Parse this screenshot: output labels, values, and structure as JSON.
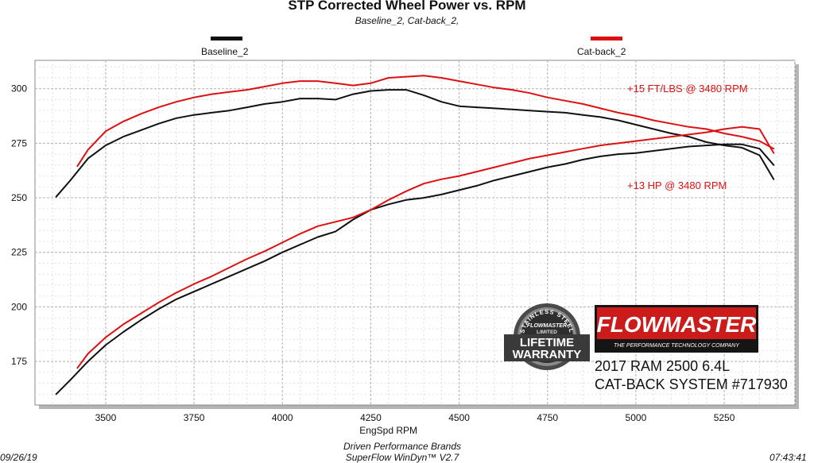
{
  "chart_data": {
    "type": "line",
    "title": "STP Corrected Wheel Power vs. RPM",
    "subtitle": "Baseline_2, Cat-back_2,",
    "xlabel": "EngSpd  RPM",
    "ylabel": "",
    "xlim": [
      3300,
      5450
    ],
    "ylim": [
      155,
      313
    ],
    "x_ticks": [
      3500,
      3750,
      4000,
      4250,
      4500,
      4750,
      5000,
      5250
    ],
    "y_ticks": [
      175,
      200,
      225,
      250,
      275,
      300
    ],
    "grid": true,
    "legend": [
      {
        "name": "Baseline_2",
        "color": "#111111"
      },
      {
        "name": "Cat-back_2",
        "color": "#dd1111"
      }
    ],
    "series": [
      {
        "name": "Baseline_2",
        "curve": "torque",
        "color": "#111111",
        "x": [
          3360,
          3400,
          3450,
          3500,
          3550,
          3600,
          3650,
          3700,
          3750,
          3800,
          3850,
          3900,
          3950,
          4000,
          4050,
          4100,
          4150,
          4200,
          4250,
          4300,
          4350,
          4400,
          4450,
          4500,
          4550,
          4600,
          4650,
          4700,
          4750,
          4800,
          4850,
          4900,
          4950,
          5000,
          5050,
          5100,
          5150,
          5200,
          5250,
          5300,
          5350,
          5390
        ],
        "y": [
          250.5,
          258,
          268,
          274,
          278,
          281,
          284,
          286.5,
          288,
          289,
          290,
          291.5,
          293,
          294,
          295.5,
          295.5,
          295,
          297.5,
          299,
          299.5,
          299.5,
          297,
          294,
          292,
          291.5,
          291,
          290.5,
          290,
          289.5,
          289,
          288,
          287,
          285.5,
          283.5,
          281.5,
          279.5,
          278,
          275.5,
          274,
          273,
          269.5,
          258.5
        ]
      },
      {
        "name": "Cat-back_2",
        "curve": "torque",
        "color": "#dd1111",
        "x": [
          3420,
          3450,
          3500,
          3550,
          3600,
          3650,
          3700,
          3750,
          3800,
          3850,
          3900,
          3950,
          4000,
          4050,
          4100,
          4150,
          4200,
          4250,
          4300,
          4350,
          4400,
          4450,
          4500,
          4550,
          4600,
          4650,
          4700,
          4750,
          4800,
          4850,
          4900,
          4950,
          5000,
          5050,
          5100,
          5150,
          5200,
          5250,
          5300,
          5350,
          5390
        ],
        "y": [
          264.5,
          272,
          280.5,
          285,
          288.5,
          291.5,
          294,
          296,
          297.5,
          298.5,
          299.5,
          301,
          302.5,
          303.5,
          303.5,
          302.5,
          301.5,
          302.5,
          305,
          305.5,
          306,
          305,
          303.5,
          302,
          300.5,
          299.5,
          298,
          296,
          294.5,
          293,
          291,
          289,
          287.5,
          285.5,
          284,
          282.5,
          281.5,
          279.5,
          278,
          276,
          272.5
        ]
      },
      {
        "name": "Baseline_2",
        "curve": "power",
        "color": "#111111",
        "x": [
          3360,
          3400,
          3450,
          3500,
          3550,
          3600,
          3650,
          3700,
          3750,
          3800,
          3850,
          3900,
          3950,
          4000,
          4050,
          4100,
          4150,
          4200,
          4250,
          4300,
          4350,
          4400,
          4450,
          4500,
          4550,
          4600,
          4650,
          4700,
          4750,
          4800,
          4850,
          4900,
          4950,
          5000,
          5050,
          5100,
          5150,
          5200,
          5250,
          5300,
          5350,
          5390
        ],
        "y": [
          160,
          166.5,
          175,
          182.5,
          188.5,
          194,
          199,
          203.5,
          207,
          210.5,
          214,
          217.5,
          221,
          225,
          228.5,
          232,
          234.5,
          240,
          244.5,
          247,
          249,
          250,
          251.5,
          253.5,
          255.5,
          258,
          260,
          262,
          264,
          265.5,
          267.5,
          269,
          270,
          270.5,
          271.5,
          272.5,
          273.5,
          274,
          274.5,
          274.5,
          272.5,
          265
        ]
      },
      {
        "name": "Cat-back_2",
        "curve": "power",
        "color": "#dd1111",
        "x": [
          3420,
          3450,
          3500,
          3550,
          3600,
          3650,
          3700,
          3750,
          3800,
          3850,
          3900,
          3950,
          4000,
          4050,
          4100,
          4150,
          4200,
          4250,
          4300,
          4350,
          4400,
          4450,
          4500,
          4550,
          4600,
          4650,
          4700,
          4750,
          4800,
          4850,
          4900,
          4950,
          5000,
          5050,
          5100,
          5150,
          5200,
          5250,
          5300,
          5350,
          5390
        ],
        "y": [
          172,
          178.5,
          186,
          192,
          197,
          202,
          206.5,
          210.5,
          214,
          218,
          222,
          225.5,
          229.5,
          233.5,
          237,
          239,
          241,
          244.5,
          249,
          253,
          256.5,
          258.5,
          260,
          262,
          264,
          266,
          268,
          269.5,
          271,
          272.5,
          274,
          275,
          276,
          277,
          278,
          279,
          280,
          281.5,
          282.5,
          281.5,
          270.5
        ]
      }
    ],
    "annotations": [
      {
        "text": "+15 FT/LBS @ 3480 RPM",
        "color": "#dd1111"
      },
      {
        "text": "+13 HP @ 3480 RPM",
        "color": "#dd1111"
      }
    ]
  },
  "footer": {
    "date": "09/26/19",
    "line1": "Driven Performance Brands",
    "line2": "SuperFlow WinDyn™  V2.7",
    "time": "07:43:41"
  },
  "badge": {
    "arc_text": "STAINLESS STEEL",
    "brand": "FLOWMASTER",
    "limited": "LIMITED",
    "line1": "LIFETIME",
    "line2": "WARRANTY"
  },
  "logo": {
    "brand": "FLOWMASTER",
    "tagline": "THE PERFORMANCE TECHNOLOGY COMPANY",
    "brand_color": "#cc1b1b"
  },
  "vehicle": {
    "line1": "2017 RAM 2500 6.4L",
    "line2": "CAT-BACK SYSTEM #717930"
  }
}
